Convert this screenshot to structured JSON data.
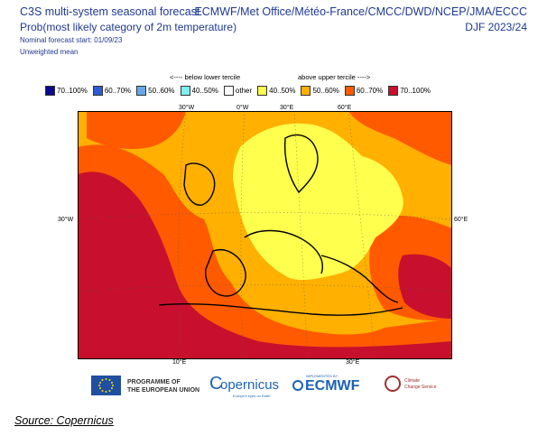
{
  "header": {
    "title_left": "C3S multi-system seasonal forecast",
    "subtitle_left": "Prob(most likely category of 2m temperature)",
    "start_line": "Nominal forecast start: 01/09/23",
    "mean_line": "Unweighted mean",
    "title_right": "ECMWF/Met Office/Météo-France/CMCC/DWD/NCEP/JMA/ECCC",
    "period": "DJF 2023/24"
  },
  "legend": {
    "below_caption": "<---- below lower tercile",
    "above_caption": "above upper tercile ---->",
    "items": [
      {
        "label": "70..100%",
        "color": "#0a0a8c"
      },
      {
        "label": "60..70%",
        "color": "#2d5bd6"
      },
      {
        "label": "50..60%",
        "color": "#66a8e8"
      },
      {
        "label": "40..50%",
        "color": "#7ff0f0"
      },
      {
        "label": "other",
        "color": "#ffffff"
      },
      {
        "label": "40..50%",
        "color": "#ffff4d"
      },
      {
        "label": "50..60%",
        "color": "#ffb000"
      },
      {
        "label": "60..70%",
        "color": "#ff5a00"
      },
      {
        "label": "70..100%",
        "color": "#c8102e"
      }
    ]
  },
  "axes": {
    "top": [
      "30°W",
      "0°W",
      "30°E",
      "60°E"
    ],
    "left": "30°W",
    "right": "60°E",
    "bottom": [
      "10°E",
      "30°E"
    ]
  },
  "logos": {
    "eu_line1": "PROGRAMME OF",
    "eu_line2": "THE EUROPEAN UNION",
    "copernicus": "opernicus",
    "copernicus_c": "C",
    "copernicus_sub": "Europe's eyes on Earth",
    "ecmwf_small": "IMPLEMENTED BY",
    "ecmwf": "ECMWF",
    "climate_line1": "Climate",
    "climate_line2": "Change Service"
  },
  "source": "Source: Copernicus"
}
